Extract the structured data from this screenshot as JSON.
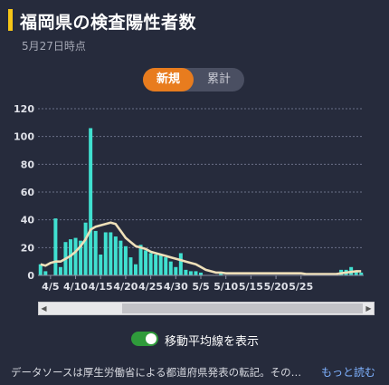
{
  "header": {
    "title": "福岡県の検査陽性者数",
    "date": "5月27日時点"
  },
  "toggle": {
    "options": [
      "新規",
      "累計"
    ],
    "selected": "新規"
  },
  "chart_data": {
    "type": "bar",
    "ylim": [
      0,
      120
    ],
    "yticks": [
      0,
      20,
      40,
      60,
      80,
      100,
      120
    ],
    "xticks": [
      "4/5",
      "4/10",
      "4/15",
      "4/20",
      "4/25",
      "4/30",
      "5/5",
      "5/10",
      "5/15",
      "5/20",
      "5/25"
    ],
    "grid": true,
    "series": [
      {
        "role": "bars",
        "color": "#40e0d0",
        "values": [
          8,
          3,
          0,
          41,
          6,
          24,
          26,
          27,
          25,
          38,
          106,
          32,
          15,
          31,
          31,
          28,
          25,
          21,
          13,
          8,
          22,
          18,
          16,
          15,
          15,
          13,
          10,
          6,
          16,
          4,
          3,
          3,
          2,
          0,
          0,
          0,
          2,
          0,
          0,
          0,
          0,
          0,
          0,
          0,
          0,
          0,
          0,
          0,
          0,
          0,
          0,
          0,
          0,
          0,
          0,
          0,
          0,
          0,
          0,
          0,
          4,
          4,
          6,
          3,
          2
        ]
      },
      {
        "role": "moving-average",
        "color": "#efe0b9",
        "values": [
          8,
          7,
          9,
          10,
          10,
          12,
          14,
          17,
          21,
          26,
          33,
          35,
          36,
          37,
          38,
          37,
          32,
          27,
          24,
          21,
          20,
          19,
          17,
          16,
          15,
          14,
          13,
          12,
          11,
          10,
          9,
          8,
          6,
          4,
          3,
          2,
          2,
          1.5,
          1.5,
          1.5,
          1.5,
          1.5,
          1.5,
          1.5,
          1.5,
          1.5,
          1.5,
          1.5,
          1.5,
          1.5,
          1.5,
          1.5,
          1.5,
          1,
          1,
          1,
          1,
          1,
          1,
          1,
          1.5,
          2,
          2.5,
          3,
          3
        ]
      }
    ]
  },
  "moving_average_toggle": {
    "label": "移動平均線を表示",
    "checked": true
  },
  "footer": {
    "note": "データソースは厚生労働省による都道府県発表の転記。その…",
    "read_more": "もっと読む"
  }
}
